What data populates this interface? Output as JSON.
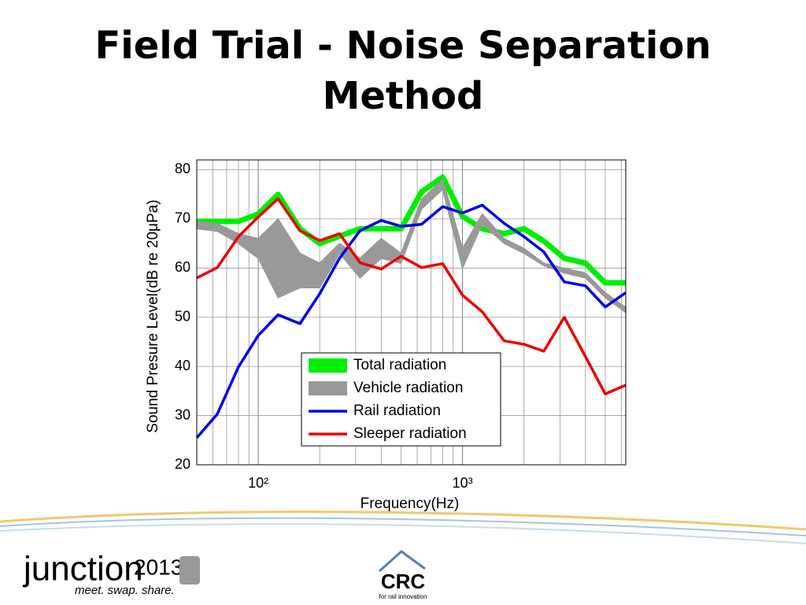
{
  "chart_data": {
    "type": "line",
    "title": "Field Trial -  Noise Separation Method",
    "xlabel": "Frequency(Hz)",
    "ylabel": "Sound Presure Level(dB re 20μPa)",
    "xscale": "log",
    "xlim": [
      50,
      6300
    ],
    "ylim": [
      20,
      82
    ],
    "xticks": [
      {
        "value": 100,
        "label": "10²"
      },
      {
        "value": 1000,
        "label": "10³"
      }
    ],
    "xminorticks": [
      50,
      60,
      70,
      80,
      90,
      200,
      300,
      400,
      500,
      600,
      700,
      800,
      900,
      2000,
      3000,
      4000,
      5000,
      6000
    ],
    "yticks": [
      20,
      30,
      40,
      50,
      60,
      70,
      80
    ],
    "grid": true,
    "x": [
      50,
      63,
      80,
      100,
      125,
      160,
      200,
      250,
      315,
      400,
      500,
      630,
      800,
      1000,
      1250,
      1600,
      2000,
      2500,
      3150,
      4000,
      5000,
      6300
    ],
    "series": [
      {
        "name": "Total radiation",
        "color": "#00ee00",
        "style": "band",
        "values": [
          69.5,
          69.5,
          69.5,
          71,
          75,
          68,
          65,
          66.5,
          68,
          68,
          68,
          75.5,
          78.5,
          70.5,
          68,
          67,
          68,
          65.5,
          62,
          61,
          57,
          57
        ]
      },
      {
        "name": "Vehicle radiation",
        "color": "#999999",
        "style": "range",
        "upper": [
          69.5,
          69,
          67,
          66,
          70,
          63,
          61,
          65,
          62,
          66,
          63,
          74,
          78,
          64,
          71,
          66,
          64,
          61,
          60,
          59,
          55,
          52
        ],
        "lower": [
          68,
          67.5,
          65,
          62,
          54,
          56,
          56,
          63,
          58,
          62,
          61,
          72,
          76,
          60,
          69,
          65,
          63,
          60.5,
          59,
          58,
          54,
          51
        ]
      },
      {
        "name": "Rail radiation",
        "color": "#0000ee",
        "style": "line",
        "values": [
          25.5,
          30.3,
          39.9,
          46.3,
          50.5,
          48.7,
          54.8,
          62.0,
          67.6,
          69.7,
          68.5,
          68.9,
          72.5,
          71.2,
          72.8,
          69.1,
          66.4,
          63.3,
          57.2,
          56.4,
          52.1,
          55.0
        ]
      },
      {
        "name": "Sleeper radiation",
        "color": "#ee0000",
        "style": "line",
        "values": [
          58.0,
          60.1,
          66.4,
          70.4,
          74.1,
          67.6,
          65.6,
          67.0,
          61.1,
          59.8,
          62.4,
          60.1,
          60.9,
          54.5,
          51.1,
          45.2,
          44.5,
          43.1,
          50.0,
          42.0,
          34.4,
          36.2
        ]
      }
    ]
  },
  "footer": {
    "logo": "junction",
    "year": "2013",
    "tagline": "meet. swap. share.",
    "crc": "CRC",
    "crc_tagline": "for rail innovation"
  }
}
